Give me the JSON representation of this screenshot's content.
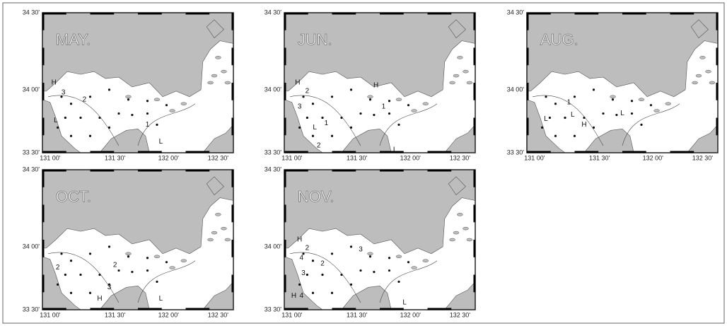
{
  "axes": {
    "y_labels": [
      "34 30'",
      "34 00'",
      "33 30'"
    ],
    "x_labels": [
      "131 00'",
      "131 30'",
      "132 00'",
      "132 30'"
    ]
  },
  "panels": [
    {
      "label": "MAY.",
      "annotations": [
        "H",
        "3",
        "2",
        "L",
        "1",
        "L"
      ]
    },
    {
      "label": "JUN.",
      "annotations": [
        "H",
        "2",
        "3",
        "L",
        "1",
        "2",
        "H",
        "1",
        "L"
      ]
    },
    {
      "label": "AUG.",
      "annotations": [
        "L",
        "L",
        "1",
        "H",
        "L"
      ]
    },
    {
      "label": "OCT.",
      "annotations": [
        "2",
        "2",
        "3",
        "H",
        "L"
      ]
    },
    {
      "label": "NOV.",
      "annotations": [
        "H",
        "2",
        "4",
        "3",
        "2",
        "3",
        "H",
        "4",
        "L"
      ]
    }
  ]
}
